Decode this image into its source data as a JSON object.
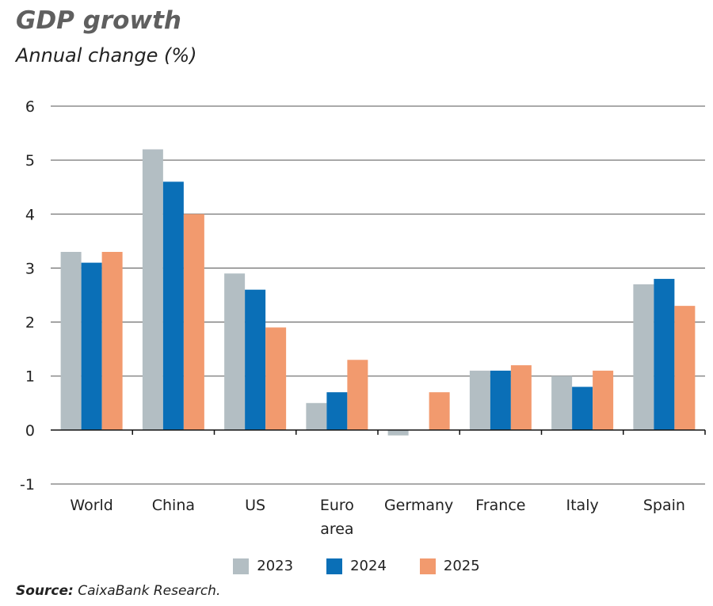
{
  "chart_data": {
    "type": "bar",
    "title": "GDP growth",
    "subtitle": "Annual change (%)",
    "categories": [
      "World",
      "China",
      "US",
      "Euro area",
      "Germany",
      "France",
      "Italy",
      "Spain"
    ],
    "series": [
      {
        "name": "2023",
        "color": "#b3bec3",
        "values": [
          3.3,
          5.2,
          2.9,
          0.5,
          -0.1,
          1.1,
          1.0,
          2.7
        ]
      },
      {
        "name": "2024",
        "color": "#0a6fb7",
        "values": [
          3.1,
          4.6,
          2.6,
          0.7,
          0.0,
          1.1,
          0.8,
          2.8
        ]
      },
      {
        "name": "2025",
        "color": "#f29a6e",
        "values": [
          3.3,
          4.0,
          1.9,
          1.3,
          0.7,
          1.2,
          1.1,
          2.3
        ]
      }
    ],
    "ylim": [
      -1,
      6
    ],
    "yticks": [
      -1,
      0,
      1,
      2,
      3,
      4,
      5,
      6
    ],
    "grid": true,
    "legend": "bottom",
    "xlabel": "",
    "ylabel": ""
  },
  "source": {
    "label": "Source:",
    "text": " CaixaBank Research."
  }
}
